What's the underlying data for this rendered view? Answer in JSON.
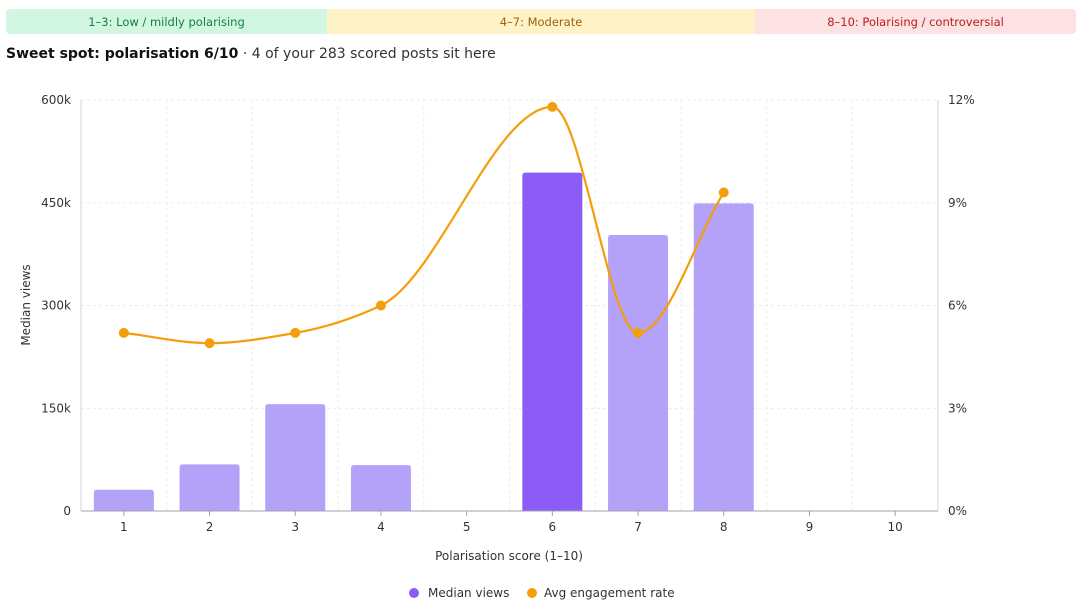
{
  "bands": [
    {
      "label": "1–3: Low / mildly polarising",
      "color": "#d1f7e3"
    },
    {
      "label": "4–7: Moderate",
      "color": "#fef3c7"
    },
    {
      "label": "8–10: Polarising / controversial",
      "color": "#fde2e4"
    }
  ],
  "headline": {
    "bold": "Sweet spot: polarisation 6/10",
    "rest": " · 4 of your 283 scored posts sit here"
  },
  "chart_data": {
    "type": "bar",
    "categories": [
      "1",
      "2",
      "3",
      "4",
      "5",
      "6",
      "7",
      "8",
      "9",
      "10"
    ],
    "xlabel": "Polarisation score (1–10)",
    "ylabel": "Median views",
    "ylim": [
      0,
      600000
    ],
    "y_ticks": [
      "0",
      "150k",
      "300k",
      "450k",
      "600k"
    ],
    "y_tick_values": [
      0,
      150000,
      300000,
      450000,
      600000
    ],
    "y2lim": [
      0,
      12
    ],
    "y2_ticks": [
      "0%",
      "3%",
      "6%",
      "9%",
      "12%"
    ],
    "y2_tick_values": [
      0,
      3,
      6,
      9,
      12
    ],
    "grid": true,
    "legend_position": "bottom",
    "series": [
      {
        "name": "Median views",
        "type": "bar",
        "axis": "left",
        "values": [
          31000,
          68000,
          156000,
          67000,
          null,
          494000,
          403000,
          449000,
          null,
          null
        ],
        "color": "#b4a1f8",
        "highlight_category": "6",
        "highlight_color": "#8b5cf6"
      },
      {
        "name": "Avg engagement rate",
        "type": "line",
        "axis": "right",
        "values": [
          5.2,
          4.9,
          5.2,
          6.0,
          null,
          11.8,
          5.2,
          9.3,
          null,
          null
        ],
        "color": "#f59e0b"
      }
    ]
  }
}
